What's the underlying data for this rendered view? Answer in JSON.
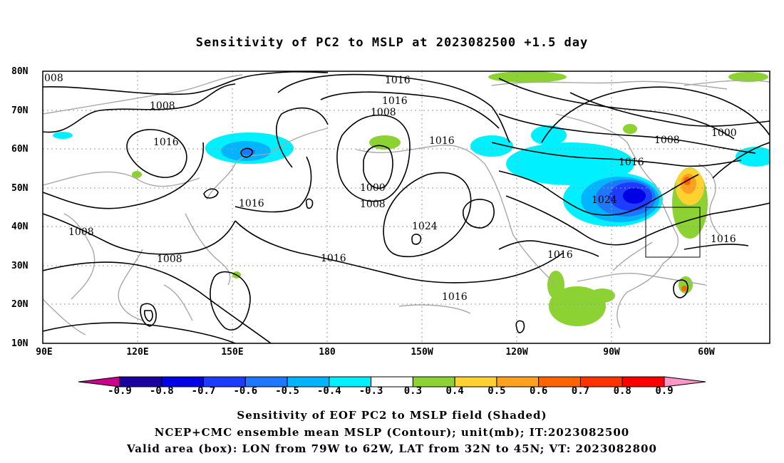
{
  "title": "Sensitivity of PC2 to MSLP at 2023082500 +1.5 day",
  "y_labels": [
    "80N",
    "70N",
    "60N",
    "50N",
    "40N",
    "30N",
    "20N",
    "10N"
  ],
  "x_labels": [
    "90E",
    "120E",
    "150E",
    "180",
    "150W",
    "120W",
    "90W",
    "60W"
  ],
  "contour_labels": {
    "c1008_nw": "008",
    "c1016_top": "1016",
    "c1016_b": "1016",
    "c1008_a": "1008",
    "c1008_b": "1008",
    "c1016_c": "1016",
    "c1016_d": "1016",
    "c1000_a": "1000",
    "c1008_c": "1008",
    "c1024_a": "1024",
    "c1016_e": "1016",
    "c1008_w": "1008",
    "c1008_sw": "1008",
    "c1016_f": "1016",
    "c1016_g": "1016",
    "c1016_h": "1016",
    "c1008_ne": "1008",
    "c1000_ne": "1000",
    "c1016_ne": "1016",
    "c1024_na": "1024",
    "c1016_se": "1016"
  },
  "colorbar": {
    "ticks": [
      "-0.9",
      "-0.8",
      "-0.7",
      "-0.6",
      "-0.5",
      "-0.4",
      "-0.3",
      "0.3",
      "0.4",
      "0.5",
      "0.6",
      "0.7",
      "0.8",
      "0.9"
    ],
    "colors": [
      "#1a00a0",
      "#0000e6",
      "#1e3cff",
      "#1e78ff",
      "#00b4ff",
      "#00f0ff",
      "#ffffff",
      "#8cd232",
      "#ffd232",
      "#ffa01e",
      "#ff6400",
      "#ff3200",
      "#ff0000"
    ],
    "low_end_color": "#c8008c",
    "high_end_color": "#ff96c8"
  },
  "caption": {
    "line1": "Sensitivity of EOF PC2 to MSLP field (Shaded)",
    "line2": "NCEP+CMC ensemble mean MSLP (Contour); unit(mb); IT:2023082500",
    "line3": "Valid area (box): LON from 79W to 62W, LAT from 32N to 45N; VT: 2023082800"
  }
}
